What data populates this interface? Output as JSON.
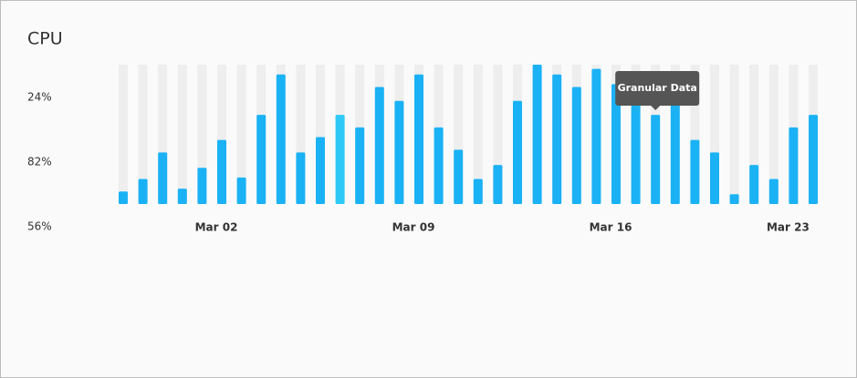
{
  "chart_data": {
    "type": "bar",
    "title": "CPU",
    "y_labels": [
      "24%",
      "82%",
      "56%"
    ],
    "categories": [
      null,
      null,
      null,
      null,
      null,
      "Mar 02",
      null,
      null,
      null,
      null,
      null,
      null,
      null,
      null,
      null,
      "Mar 09",
      null,
      null,
      null,
      null,
      null,
      null,
      null,
      null,
      null,
      "Mar 16",
      null,
      null,
      null,
      null,
      null,
      null,
      null,
      null,
      "Mar 23",
      null
    ],
    "values": [
      9,
      18,
      37,
      11,
      26,
      46,
      19,
      64,
      93,
      37,
      48,
      64,
      55,
      84,
      74,
      93,
      55,
      39,
      18,
      28,
      74,
      100,
      93,
      84,
      97,
      86,
      81,
      64,
      81,
      46,
      37,
      7,
      28,
      18,
      55,
      64
    ],
    "color": "#1ab2f5",
    "track_color": "#eeeeee",
    "highlight": {
      "index": 11,
      "color": "#2ec9f7"
    },
    "ylim": [
      0,
      100
    ],
    "tooltip": {
      "text": "Granular Data",
      "index": 27
    }
  }
}
